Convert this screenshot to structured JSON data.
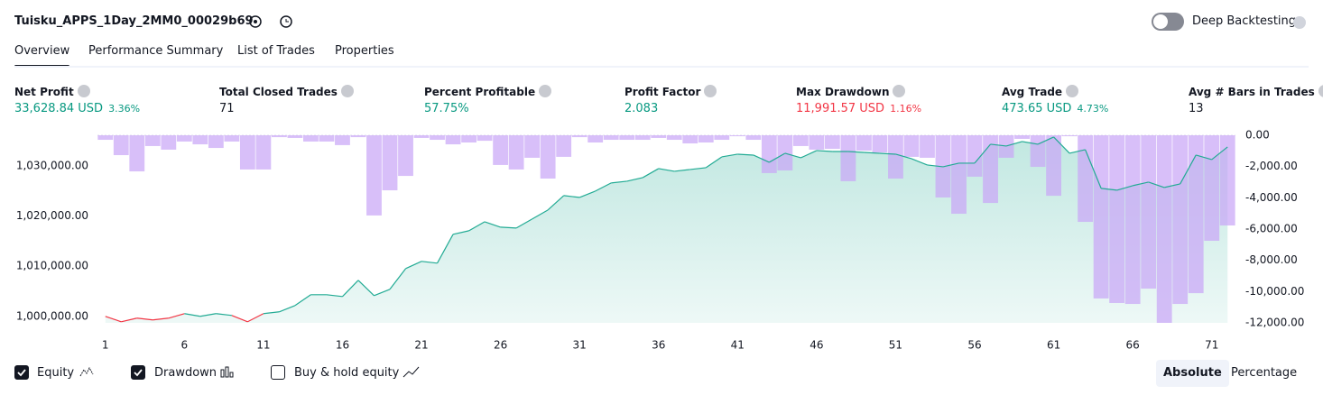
{
  "header": {
    "title": "Tuisku_APPS_1Day_2MM0_00029b69",
    "toggle_label": "Deep Backtesting",
    "toggle_on": false
  },
  "tabs": {
    "items": [
      "Overview",
      "Performance Summary",
      "List of Trades",
      "Properties"
    ],
    "active": 0
  },
  "metrics": [
    {
      "label": "Net Profit",
      "value": "33,628.84 USD",
      "percent": "3.36%",
      "color": "#089981"
    },
    {
      "label": "Total Closed Trades",
      "value": "71",
      "color": "#131722"
    },
    {
      "label": "Percent Profitable",
      "value": "57.75%",
      "color": "#089981"
    },
    {
      "label": "Profit Factor",
      "value": "2.083",
      "color": "#089981"
    },
    {
      "label": "Max Drawdown",
      "value": "11,991.57 USD",
      "percent": "1.16%",
      "color": "#f23645"
    },
    {
      "label": "Avg Trade",
      "value": "473.65 USD",
      "percent": "4.73%",
      "color": "#089981"
    },
    {
      "label": "Avg # Bars in Trades",
      "value": "13",
      "color": "#131722"
    }
  ],
  "chart_data": {
    "type": "combo",
    "x": [
      1,
      2,
      3,
      4,
      5,
      6,
      7,
      8,
      9,
      10,
      11,
      12,
      13,
      14,
      15,
      16,
      17,
      18,
      19,
      20,
      21,
      22,
      23,
      24,
      25,
      26,
      27,
      28,
      29,
      30,
      31,
      32,
      33,
      34,
      35,
      36,
      37,
      38,
      39,
      40,
      41,
      42,
      43,
      44,
      45,
      46,
      47,
      48,
      49,
      50,
      51,
      52,
      53,
      54,
      55,
      56,
      57,
      58,
      59,
      60,
      61,
      62,
      63,
      64,
      65,
      66,
      67,
      68,
      69,
      70,
      71,
      72
    ],
    "xlim": [
      0.5,
      72.5
    ],
    "xticks": [
      1,
      6,
      11,
      16,
      21,
      26,
      31,
      36,
      41,
      46,
      51,
      56,
      61,
      66,
      71
    ],
    "ylim": [
      998700,
      1036100
    ],
    "yticks": [
      {
        "value": 1000000,
        "label": "1,000,000.00"
      },
      {
        "value": 1010000,
        "label": "1,010,000.00"
      },
      {
        "value": 1020000,
        "label": "1,020,000.00"
      },
      {
        "value": 1030000,
        "label": "1,030,000.00"
      }
    ],
    "y2lim": [
      -12000,
      0
    ],
    "y2ticks": [
      {
        "value": 0,
        "label": "0.00"
      },
      {
        "value": -2000,
        "label": "-2,000.00"
      },
      {
        "value": -4000,
        "label": "-4,000.00"
      },
      {
        "value": -6000,
        "label": "-6,000.00"
      },
      {
        "value": -8000,
        "label": "-8,000.00"
      },
      {
        "value": -10000,
        "label": "-10,000.00"
      },
      {
        "value": -12000,
        "label": "-12,000.00"
      }
    ],
    "series": [
      {
        "name": "Equity",
        "type": "line",
        "color": "#22ab94",
        "negative_color": "#f23645",
        "checked": true,
        "values": [
          1000000,
          998920,
          999640,
          999280,
          999640,
          1000540,
          1000000,
          1000540,
          1000180,
          998920,
          1000540,
          1000900,
          1002160,
          1004310,
          1004310,
          1003950,
          1007190,
          1004130,
          1005390,
          1009520,
          1010960,
          1010600,
          1016350,
          1017060,
          1018860,
          1017780,
          1017600,
          1019400,
          1021200,
          1024070,
          1023710,
          1024970,
          1026590,
          1026940,
          1027660,
          1029460,
          1028920,
          1029280,
          1029640,
          1031790,
          1032330,
          1032150,
          1030720,
          1032510,
          1031610,
          1033050,
          1032870,
          1032870,
          1032690,
          1032510,
          1032330,
          1031430,
          1030180,
          1029820,
          1030540,
          1030540,
          1034310,
          1033950,
          1034850,
          1034310,
          1035750,
          1032510,
          1033230,
          1025510,
          1025150,
          1026050,
          1026760,
          1025690,
          1026400,
          1032150,
          1031260,
          1033770
        ]
      },
      {
        "name": "Drawdown",
        "type": "bar",
        "axis": "y2",
        "color": "#c9a6f7",
        "checked": true,
        "values": [
          -290,
          -1270,
          -2310,
          -690,
          -920,
          -400,
          -580,
          -810,
          -400,
          -2190,
          -2190,
          -120,
          -170,
          -400,
          -400,
          -630,
          -120,
          -5130,
          -3520,
          -2600,
          -170,
          -290,
          -580,
          -460,
          -350,
          -1900,
          -2190,
          -1440,
          -2770,
          -1380,
          -120,
          -460,
          -290,
          -290,
          -290,
          -170,
          -290,
          -520,
          -460,
          -290,
          -60,
          -290,
          -2420,
          -2250,
          -690,
          -920,
          -870,
          -2940,
          -980,
          -1100,
          -2770,
          -1380,
          -1440,
          -3980,
          -5020,
          -2650,
          -4330,
          -1440,
          -230,
          -2020,
          -3870,
          -60,
          -5540,
          -10440,
          -10730,
          -10790,
          -9810,
          -12000,
          -10790,
          -10100,
          -6750,
          -5770
        ]
      }
    ],
    "buy_hold": {
      "name": "Buy & hold equity",
      "checked": false
    },
    "scale_modes": {
      "items": [
        "Absolute",
        "Percentage"
      ],
      "active": 0
    }
  }
}
